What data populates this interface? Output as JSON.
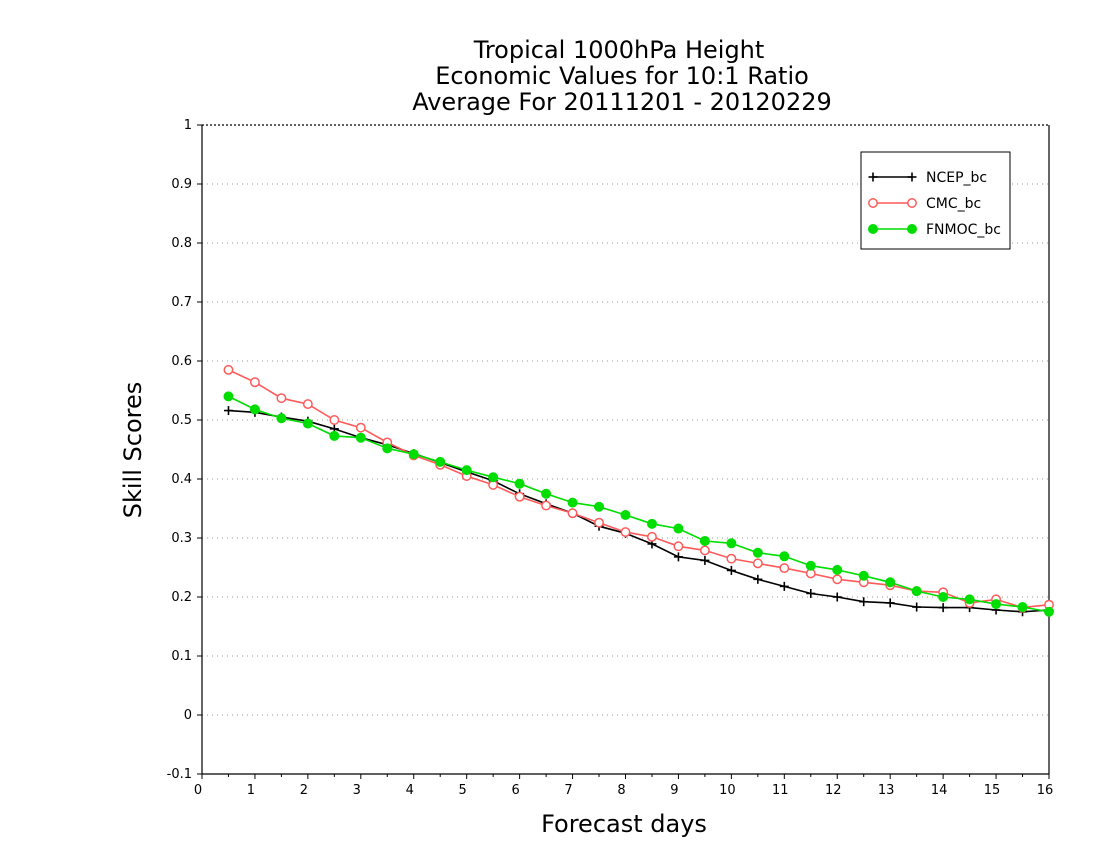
{
  "chart_data": {
    "type": "line",
    "title_lines": [
      "Tropical 1000hPa Height",
      "Economic Values for 10:1 Ratio",
      "Average For 20111201 - 20120229"
    ],
    "xlabel": "Forecast days",
    "ylabel": "Skill Scores",
    "xlim": [
      0,
      16
    ],
    "ylim": [
      -0.1,
      1
    ],
    "x_ticks": [
      0,
      1,
      2,
      3,
      4,
      5,
      6,
      7,
      8,
      9,
      10,
      11,
      12,
      13,
      14,
      15,
      16
    ],
    "y_ticks": [
      -0.1,
      0,
      0.1,
      0.2,
      0.3,
      0.4,
      0.5,
      0.6,
      0.7,
      0.8,
      0.9,
      1
    ],
    "y_tick_labels": [
      "-0.1",
      "0",
      "0.1",
      "0.2",
      "0.3",
      "0.4",
      "0.5",
      "0.6",
      "0.7",
      "0.8",
      "0.9",
      "1"
    ],
    "grid": "horizontal dotted",
    "legend_position": "top-right",
    "x": [
      0.5,
      1,
      1.5,
      2,
      2.5,
      3,
      3.5,
      4,
      4.5,
      5,
      5.5,
      6,
      6.5,
      7,
      7.5,
      8,
      8.5,
      9,
      9.5,
      10,
      10.5,
      11,
      11.5,
      12,
      12.5,
      13,
      13.5,
      14,
      14.5,
      15,
      15.5,
      16
    ],
    "series": [
      {
        "name": "NCEP_bc",
        "color": "#000000",
        "marker": "plus",
        "values": [
          0.516,
          0.513,
          0.505,
          0.498,
          0.485,
          0.47,
          0.458,
          0.443,
          0.428,
          0.412,
          0.397,
          0.375,
          0.358,
          0.342,
          0.32,
          0.308,
          0.29,
          0.268,
          0.262,
          0.245,
          0.23,
          0.218,
          0.206,
          0.2,
          0.192,
          0.19,
          0.183,
          0.182,
          0.182,
          0.178,
          0.175,
          0.178
        ]
      },
      {
        "name": "CMC_bc",
        "color": "#ff5a5a",
        "marker": "open-circle",
        "values": [
          0.585,
          0.564,
          0.537,
          0.527,
          0.5,
          0.487,
          0.462,
          0.44,
          0.424,
          0.405,
          0.39,
          0.37,
          0.355,
          0.342,
          0.326,
          0.31,
          0.302,
          0.286,
          0.279,
          0.265,
          0.257,
          0.249,
          0.24,
          0.23,
          0.225,
          0.22,
          0.21,
          0.208,
          0.19,
          0.196,
          0.182,
          0.187
        ]
      },
      {
        "name": "FNMOC_bc",
        "color": "#00dd00",
        "marker": "filled-circle",
        "values": [
          0.54,
          0.518,
          0.503,
          0.494,
          0.473,
          0.47,
          0.452,
          0.442,
          0.429,
          0.415,
          0.403,
          0.392,
          0.375,
          0.36,
          0.353,
          0.339,
          0.324,
          0.316,
          0.295,
          0.291,
          0.275,
          0.269,
          0.253,
          0.246,
          0.236,
          0.225,
          0.21,
          0.2,
          0.196,
          0.188,
          0.183,
          0.175
        ]
      }
    ]
  }
}
